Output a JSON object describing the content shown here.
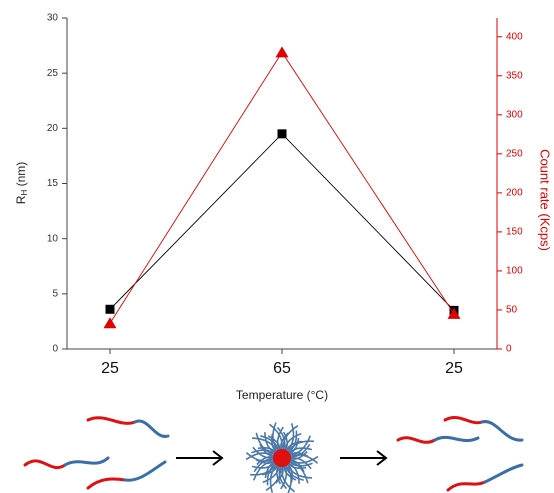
{
  "chart_data": {
    "type": "line",
    "categories": [
      "25",
      "65",
      "25"
    ],
    "xlabel": "Temperature (°C)",
    "ylabel": [
      "R",
      "H",
      " (nm)"
    ],
    "y2label": "Count rate (Kcps)",
    "ylim": [
      0,
      30
    ],
    "yticks": [
      0,
      5,
      10,
      15,
      20,
      25,
      30
    ],
    "y2lim": [
      0,
      424
    ],
    "y2ticks": [
      0,
      50,
      100,
      150,
      200,
      250,
      300,
      350,
      400
    ],
    "y2color": "#e00000",
    "series": [
      {
        "color": "#000000",
        "marker": "square",
        "values": [
          3.6,
          19.5,
          3.5
        ]
      },
      {
        "color": "#e00000",
        "marker": "triangle",
        "axis": "y2",
        "values": [
          33,
          380,
          45
        ]
      }
    ]
  }
}
